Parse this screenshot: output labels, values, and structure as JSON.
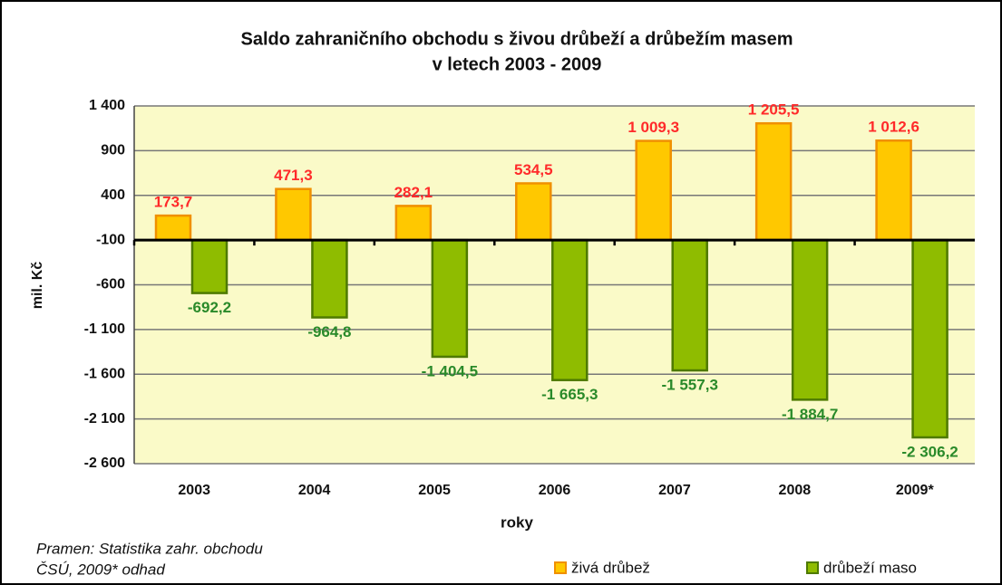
{
  "chart_data": {
    "type": "bar",
    "title": [
      "Saldo zahraničního obchodu s živou drůbeží a drůbežím masem",
      "v letech 2003 - 2009"
    ],
    "categories": [
      "2003",
      "2004",
      "2005",
      "2006",
      "2007",
      "2008",
      "2009*"
    ],
    "series": [
      {
        "name": "živá drůbež",
        "color": "#ffc800",
        "label_color": "#ff2a2a",
        "values": [
          173.7,
          471.3,
          282.1,
          534.5,
          1009.3,
          1205.5,
          1012.6
        ],
        "value_labels": [
          "173,7",
          "471,3",
          "282,1",
          "534,5",
          "1 009,3",
          "1 205,5",
          "1 012,6"
        ]
      },
      {
        "name": "drůbeží maso",
        "color": "#8fbc00",
        "label_color": "#2a8a2a",
        "values": [
          -692.2,
          -964.8,
          -1404.5,
          -1665.3,
          -1557.3,
          -1884.7,
          -2306.2
        ],
        "value_labels": [
          "-692,2",
          "-964,8",
          "-1 404,5",
          "-1 665,3",
          "-1 557,3",
          "-1 884,7",
          "-2 306,2"
        ]
      }
    ],
    "x_label": "roky",
    "y_label": "mil. Kč",
    "ylim": [
      -2600,
      1400
    ],
    "yticks": [
      {
        "value": 1400,
        "label": "1 400"
      },
      900,
      400,
      -100,
      -600,
      {
        "value": -1100,
        "label": "-1 100"
      },
      {
        "value": -1600,
        "label": "-1 600"
      },
      {
        "value": -2100,
        "label": "-2 100"
      },
      {
        "value": -2600,
        "label": "-2 600"
      }
    ],
    "x_axis_at": -100,
    "grid": true,
    "source": [
      "Pramen: Statistika zahr. obchodu",
      "ČSÚ, 2009* odhad"
    ]
  }
}
